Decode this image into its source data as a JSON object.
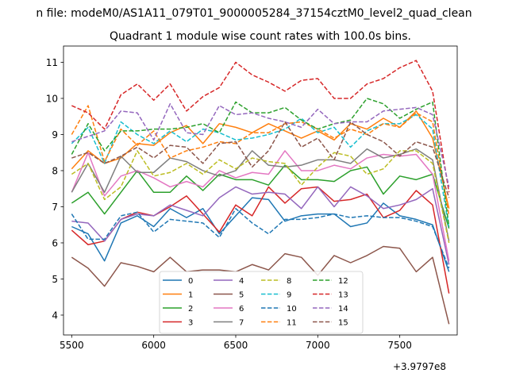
{
  "figure": {
    "suptitle": "n file: modeM0/AS1A11_079T01_9000005284_37154cztM0_level2_quad_clean",
    "title": "Quadrant 1 module wise count rates with 100.0s bins.",
    "x_offset_label": "+3.9797e8"
  },
  "chart_data": {
    "type": "line",
    "title": "Quadrant 1 module wise count rates with 100.0s bins.",
    "xlabel": "",
    "ylabel": "",
    "x_offset": 397970000,
    "xlim": [
      5450,
      7850
    ],
    "ylim": [
      3.45,
      11.45
    ],
    "xticks": [
      5500,
      6000,
      6500,
      7000,
      7500
    ],
    "yticks": [
      4,
      5,
      6,
      7,
      8,
      9,
      10,
      11
    ],
    "grid": false,
    "legend_position": "lower-center",
    "legend_columns": 4,
    "x": [
      5500,
      5600,
      5700,
      5800,
      5900,
      6000,
      6100,
      6200,
      6300,
      6400,
      6500,
      6600,
      6700,
      6800,
      6900,
      7000,
      7100,
      7200,
      7300,
      7400,
      7500,
      7600,
      7700,
      7800
    ],
    "series": [
      {
        "name": "0",
        "color": "#1f77b4",
        "dash": "solid",
        "values": [
          6.45,
          6.25,
          5.5,
          6.55,
          6.75,
          6.45,
          6.95,
          6.7,
          6.95,
          6.25,
          6.75,
          7.25,
          7.2,
          6.6,
          6.75,
          6.8,
          6.8,
          6.45,
          6.55,
          7.1,
          6.75,
          6.65,
          6.5,
          5.2
        ]
      },
      {
        "name": "1",
        "color": "#ff7f0e",
        "dash": "solid",
        "values": [
          8.05,
          8.55,
          8.2,
          8.35,
          8.75,
          8.7,
          9.05,
          9.25,
          8.75,
          9.3,
          9.2,
          9.05,
          9.3,
          9.1,
          8.9,
          9.1,
          8.85,
          9.3,
          9.15,
          9.45,
          9.2,
          9.65,
          8.9,
          6.95
        ]
      },
      {
        "name": "2",
        "color": "#2ca02c",
        "dash": "solid",
        "values": [
          7.1,
          7.4,
          6.8,
          7.4,
          8.0,
          7.4,
          7.4,
          7.85,
          7.45,
          7.9,
          7.75,
          7.75,
          7.6,
          8.15,
          7.75,
          7.75,
          7.7,
          8.0,
          8.1,
          7.35,
          7.85,
          7.75,
          7.9,
          6.4
        ]
      },
      {
        "name": "3",
        "color": "#d62728",
        "dash": "solid",
        "values": [
          6.35,
          5.95,
          6.05,
          6.65,
          6.85,
          6.75,
          7.0,
          7.3,
          6.8,
          6.3,
          7.05,
          6.75,
          7.55,
          7.1,
          7.5,
          7.55,
          7.15,
          7.2,
          7.35,
          6.7,
          6.9,
          7.45,
          7.05,
          4.6
        ]
      },
      {
        "name": "4",
        "color": "#9467bd",
        "dash": "solid",
        "values": [
          6.6,
          6.55,
          6.05,
          6.65,
          6.8,
          6.75,
          7.05,
          6.9,
          6.75,
          7.25,
          7.55,
          7.35,
          7.4,
          7.35,
          6.95,
          7.55,
          7.0,
          7.55,
          7.3,
          6.95,
          7.05,
          7.2,
          7.5,
          5.4
        ]
      },
      {
        "name": "5",
        "color": "#8c564b",
        "dash": "solid",
        "values": [
          5.6,
          5.3,
          4.8,
          5.45,
          5.35,
          5.2,
          5.6,
          5.2,
          5.25,
          5.25,
          5.2,
          5.4,
          5.25,
          5.7,
          5.6,
          5.1,
          5.65,
          5.45,
          5.65,
          5.9,
          5.85,
          5.2,
          5.6,
          3.75
        ]
      },
      {
        "name": "6",
        "color": "#e377c2",
        "dash": "solid",
        "values": [
          7.4,
          8.5,
          7.3,
          7.85,
          8.0,
          7.8,
          7.55,
          7.7,
          7.55,
          8.0,
          7.8,
          7.95,
          7.9,
          8.55,
          8.0,
          8.0,
          8.15,
          8.05,
          8.35,
          8.45,
          8.4,
          8.45,
          7.9,
          5.5
        ]
      },
      {
        "name": "7",
        "color": "#7f7f7f",
        "dash": "solid",
        "values": [
          7.4,
          8.2,
          7.4,
          8.4,
          7.95,
          7.95,
          8.35,
          8.25,
          8.0,
          7.85,
          8.0,
          8.55,
          8.15,
          8.1,
          8.15,
          8.3,
          8.3,
          8.2,
          8.6,
          8.35,
          8.45,
          8.6,
          8.3,
          6.05
        ]
      },
      {
        "name": "8",
        "color": "#bcbd22",
        "dash": "dashed",
        "values": [
          7.9,
          8.2,
          7.2,
          7.55,
          8.55,
          7.85,
          7.95,
          8.2,
          7.9,
          8.3,
          8.05,
          8.35,
          8.25,
          8.2,
          7.6,
          8.1,
          8.5,
          8.4,
          7.9,
          8.05,
          8.55,
          8.55,
          8.2,
          6.0
        ]
      },
      {
        "name": "9",
        "color": "#17becf",
        "dash": "dashed",
        "values": [
          8.75,
          9.2,
          8.2,
          9.35,
          9.0,
          8.75,
          9.1,
          8.8,
          9.15,
          9.05,
          8.85,
          8.9,
          9.0,
          9.15,
          9.45,
          9.05,
          9.2,
          8.65,
          9.1,
          9.3,
          9.3,
          9.55,
          9.15,
          6.4
        ]
      },
      {
        "name": "10",
        "color": "#1f77b4",
        "dash": "dashed",
        "values": [
          6.8,
          6.1,
          6.1,
          6.75,
          6.85,
          6.3,
          6.65,
          6.6,
          6.55,
          6.15,
          6.95,
          6.55,
          6.25,
          6.65,
          6.65,
          6.7,
          6.8,
          6.7,
          6.75,
          6.7,
          6.7,
          6.6,
          6.45,
          5.3
        ]
      },
      {
        "name": "11",
        "color": "#ff7f0e",
        "dash": "dashed",
        "values": [
          9.0,
          9.8,
          8.25,
          9.15,
          8.7,
          9.1,
          8.35,
          8.55,
          8.65,
          8.8,
          8.75,
          9.05,
          9.05,
          9.3,
          9.35,
          9.15,
          8.9,
          9.15,
          9.0,
          9.3,
          9.2,
          9.6,
          9.35,
          6.75
        ]
      },
      {
        "name": "12",
        "color": "#2ca02c",
        "dash": "dashed",
        "values": [
          8.45,
          9.3,
          8.55,
          9.1,
          9.1,
          9.15,
          9.15,
          9.2,
          9.3,
          9.05,
          9.9,
          9.6,
          9.6,
          9.75,
          9.4,
          9.15,
          9.3,
          9.4,
          10.0,
          9.85,
          9.45,
          9.7,
          9.9,
          6.45
        ]
      },
      {
        "name": "13",
        "color": "#d62728",
        "dash": "dashed",
        "values": [
          9.8,
          9.6,
          9.15,
          10.1,
          10.4,
          9.95,
          10.4,
          9.65,
          10.05,
          10.3,
          11.0,
          10.65,
          10.45,
          10.2,
          10.5,
          10.55,
          10.0,
          10.0,
          10.4,
          10.55,
          10.85,
          11.05,
          10.2,
          7.4
        ]
      },
      {
        "name": "14",
        "color": "#9467bd",
        "dash": "dashed",
        "values": [
          8.8,
          8.95,
          9.1,
          9.65,
          9.6,
          8.85,
          9.85,
          9.05,
          9.0,
          9.8,
          9.55,
          9.6,
          9.45,
          9.35,
          9.2,
          9.7,
          9.3,
          9.35,
          9.35,
          9.65,
          9.7,
          9.75,
          9.55,
          7.55
        ]
      },
      {
        "name": "15",
        "color": "#8c564b",
        "dash": "dashed",
        "values": [
          8.35,
          8.5,
          8.2,
          8.4,
          8.65,
          8.35,
          8.7,
          8.65,
          8.2,
          8.75,
          8.8,
          8.1,
          8.55,
          9.35,
          8.65,
          8.9,
          8.3,
          9.35,
          9.0,
          8.8,
          8.4,
          8.8,
          8.65,
          7.25
        ]
      }
    ]
  }
}
